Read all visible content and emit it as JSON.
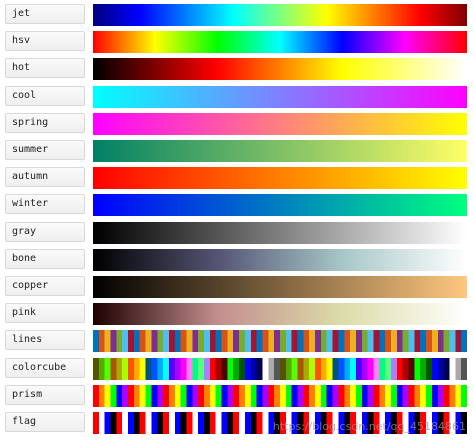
{
  "colormaps": [
    {
      "name": "jet",
      "type": "gradient",
      "stops": [
        "#00007f",
        "#0000ff",
        "#007fff",
        "#00ffff",
        "#7fff7f",
        "#ffff00",
        "#ff7f00",
        "#ff0000",
        "#7f0000"
      ]
    },
    {
      "name": "hsv",
      "type": "gradient",
      "stops": [
        "#ff0000",
        "#ffff00",
        "#00ff00",
        "#00ffff",
        "#0000ff",
        "#ff00ff",
        "#ff0000"
      ]
    },
    {
      "name": "hot",
      "type": "gradient",
      "stops": [
        "#000000",
        "#ff0000",
        "#ffff00",
        "#ffffff"
      ]
    },
    {
      "name": "cool",
      "type": "gradient",
      "stops": [
        "#00ffff",
        "#ff00ff"
      ]
    },
    {
      "name": "spring",
      "type": "gradient",
      "stops": [
        "#ff00ff",
        "#ffff00"
      ]
    },
    {
      "name": "summer",
      "type": "gradient",
      "stops": [
        "#008066",
        "#ffff66"
      ]
    },
    {
      "name": "autumn",
      "type": "gradient",
      "stops": [
        "#ff0000",
        "#ffff00"
      ]
    },
    {
      "name": "winter",
      "type": "gradient",
      "stops": [
        "#0000ff",
        "#00ff80"
      ]
    },
    {
      "name": "gray",
      "type": "gradient",
      "stops": [
        "#000000",
        "#ffffff"
      ]
    },
    {
      "name": "bone",
      "type": "gradient",
      "stops": [
        "#000000",
        "#545474",
        "#a7c7c7",
        "#ffffff"
      ]
    },
    {
      "name": "copper",
      "type": "gradient",
      "stops": [
        "#000000",
        "#ffc77f"
      ]
    },
    {
      "name": "pink",
      "type": "gradient",
      "stops": [
        "#1e0000",
        "#c38e8e",
        "#dcdcaa",
        "#ffffff"
      ]
    },
    {
      "name": "lines",
      "type": "stripes",
      "count": 64,
      "colors": [
        "#0072bd",
        "#d95319",
        "#edb120",
        "#7e2f8e",
        "#77ac30",
        "#4dbeee",
        "#a2142f"
      ]
    },
    {
      "name": "colorcube",
      "type": "stripes",
      "count": 64,
      "colors": [
        "#555500",
        "#55aa00",
        "#55ff00",
        "#aa5500",
        "#aaaa00",
        "#aaff00",
        "#ff5500",
        "#ffaa00",
        "#ffff00",
        "#00557f",
        "#0055ff",
        "#00aaff",
        "#00ffff",
        "#5500ff",
        "#aa00ff",
        "#ff00ff",
        "#ff7fff",
        "#00ff7f",
        "#55ff7f",
        "#aa7fff",
        "#ff0000",
        "#aa0000",
        "#550000",
        "#00ff00",
        "#00aa00",
        "#005500",
        "#0000ff",
        "#0000aa",
        "#000055",
        "#ffffff",
        "#aaaaaa",
        "#555555"
      ]
    },
    {
      "name": "prism",
      "type": "stripes",
      "count": 64,
      "colors": [
        "#ff0000",
        "#ff8000",
        "#ffff00",
        "#00ff00",
        "#0000ff",
        "#aa00ff"
      ]
    },
    {
      "name": "flag",
      "type": "stripes",
      "count": 64,
      "colors": [
        "#ff0000",
        "#ffffff",
        "#0000ff",
        "#000000"
      ]
    }
  ],
  "watermark": "https://blog.csdn.net/qq_45184861"
}
